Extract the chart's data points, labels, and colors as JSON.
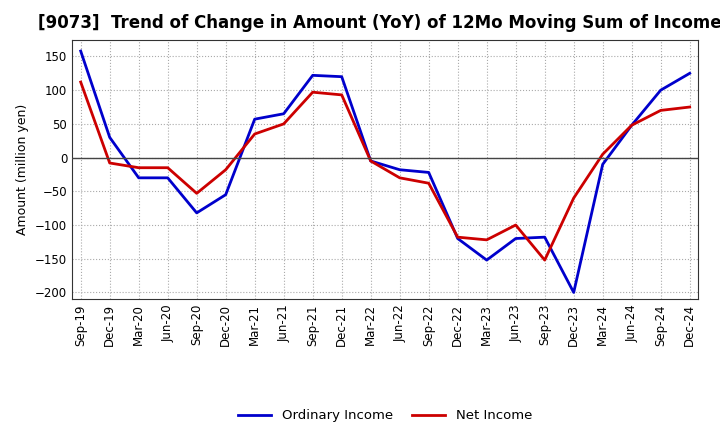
{
  "title": "[9073]  Trend of Change in Amount (YoY) of 12Mo Moving Sum of Incomes",
  "ylabel": "Amount (million yen)",
  "x_labels": [
    "Sep-19",
    "Dec-19",
    "Mar-20",
    "Jun-20",
    "Sep-20",
    "Dec-20",
    "Mar-21",
    "Jun-21",
    "Sep-21",
    "Dec-21",
    "Mar-22",
    "Jun-22",
    "Sep-22",
    "Dec-22",
    "Mar-23",
    "Jun-23",
    "Sep-23",
    "Dec-23",
    "Mar-24",
    "Jun-24",
    "Sep-24",
    "Dec-24"
  ],
  "ordinary_income": [
    158,
    30,
    -30,
    -30,
    -82,
    -55,
    57,
    65,
    122,
    120,
    -5,
    -18,
    -22,
    -120,
    -152,
    -120,
    -118,
    -200,
    -10,
    48,
    100,
    125
  ],
  "net_income": [
    112,
    -8,
    -15,
    -15,
    -53,
    -18,
    35,
    50,
    97,
    93,
    -5,
    -30,
    -38,
    -118,
    -122,
    -100,
    -152,
    -60,
    5,
    48,
    70,
    75
  ],
  "ordinary_income_color": "#0000cc",
  "net_income_color": "#cc0000",
  "ylim": [
    -210,
    175
  ],
  "yticks": [
    -200,
    -150,
    -100,
    -50,
    0,
    50,
    100,
    150
  ],
  "grid_color": "#aaaaaa",
  "background_color": "#ffffff",
  "legend_labels": [
    "Ordinary Income",
    "Net Income"
  ],
  "title_fontsize": 12,
  "label_fontsize": 9,
  "tick_fontsize": 8.5,
  "linewidth": 2.0
}
